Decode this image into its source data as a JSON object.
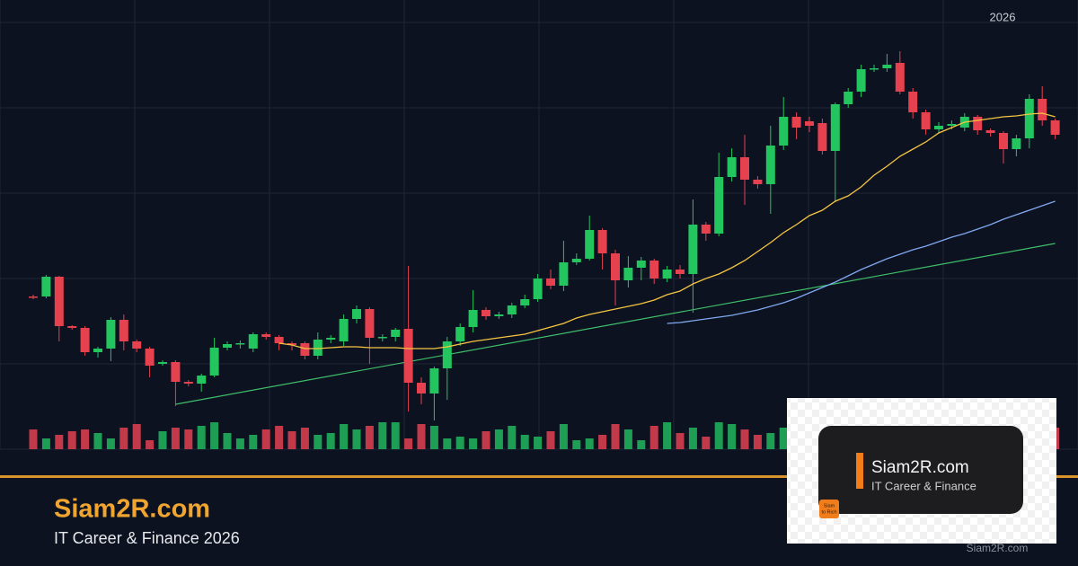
{
  "chart_data": {
    "type": "candlestick",
    "period_label": "2026",
    "ylim": [
      0,
      500
    ],
    "volume_ylim": [
      0,
      100
    ],
    "grid": true,
    "up_color": "#22c55e",
    "down_color": "#e5414f",
    "volume_up_color": "#1e9e55",
    "volume_down_color": "#c23a4a",
    "open": [
      170,
      170,
      192,
      137,
      135,
      108,
      112,
      144,
      120,
      112,
      95,
      97,
      75,
      73,
      82,
      113,
      117,
      112,
      128,
      125,
      118,
      118,
      104,
      122,
      120,
      145,
      156,
      124,
      125,
      134,
      74,
      62,
      90,
      120,
      136,
      155,
      148,
      150,
      160,
      167,
      190,
      182,
      208,
      212,
      244,
      218,
      188,
      202,
      210,
      190,
      200,
      195,
      250,
      240,
      303,
      325,
      300,
      295,
      338,
      370,
      365,
      363,
      332,
      384,
      398,
      423,
      424,
      430,
      398,
      375,
      356,
      360,
      358,
      370,
      355,
      352,
      334,
      346,
      390,
      366
    ],
    "close": [
      169,
      192,
      137,
      135,
      108,
      112,
      144,
      120,
      112,
      93,
      97,
      75,
      73,
      82,
      113,
      117,
      118,
      128,
      125,
      118,
      116,
      104,
      122,
      124,
      145,
      156,
      124,
      125,
      133,
      74,
      62,
      90,
      120,
      136,
      155,
      148,
      150,
      160,
      167,
      190,
      182,
      208,
      212,
      244,
      218,
      188,
      202,
      210,
      190,
      200,
      195,
      250,
      240,
      303,
      325,
      300,
      295,
      338,
      370,
      358,
      360,
      332,
      384,
      398,
      423,
      424,
      428,
      398,
      375,
      356,
      360,
      362,
      370,
      355,
      352,
      334,
      346,
      390,
      366,
      350
    ],
    "high": [
      172,
      194,
      193,
      138,
      137,
      114,
      147,
      150,
      122,
      114,
      99,
      99,
      77,
      84,
      124,
      120,
      121,
      130,
      130,
      127,
      120,
      120,
      130,
      127,
      150,
      160,
      158,
      128,
      135,
      204,
      80,
      92,
      125,
      140,
      177,
      158,
      153,
      163,
      172,
      195,
      200,
      232,
      218,
      260,
      246,
      222,
      215,
      214,
      212,
      204,
      205,
      278,
      253,
      330,
      335,
      350,
      304,
      360,
      392,
      375,
      370,
      368,
      386,
      402,
      428,
      428,
      440,
      443,
      402,
      378,
      364,
      366,
      374,
      372,
      357,
      354,
      350,
      395,
      404,
      368
    ],
    "low": [
      167,
      168,
      120,
      133,
      104,
      102,
      98,
      110,
      108,
      80,
      93,
      48,
      70,
      64,
      80,
      110,
      112,
      108,
      122,
      110,
      110,
      100,
      100,
      118,
      115,
      140,
      95,
      120,
      120,
      42,
      50,
      32,
      55,
      115,
      130,
      144,
      145,
      146,
      157,
      164,
      178,
      176,
      205,
      210,
      200,
      160,
      180,
      188,
      184,
      186,
      190,
      152,
      232,
      237,
      298,
      272,
      290,
      262,
      333,
      345,
      353,
      328,
      275,
      380,
      392,
      420,
      420,
      395,
      368,
      350,
      352,
      356,
      354,
      350,
      348,
      318,
      326,
      335,
      360,
      345
    ],
    "volume": [
      22,
      12,
      16,
      20,
      22,
      18,
      12,
      24,
      28,
      10,
      20,
      24,
      22,
      26,
      30,
      18,
      12,
      16,
      22,
      26,
      20,
      24,
      16,
      18,
      28,
      22,
      26,
      30,
      30,
      12,
      28,
      26,
      12,
      14,
      12,
      20,
      22,
      26,
      16,
      14,
      20,
      28,
      10,
      12,
      16,
      28,
      22,
      10,
      26,
      30,
      18,
      24,
      14,
      30,
      28,
      22,
      16,
      18,
      24,
      14,
      20,
      26,
      18,
      22,
      28,
      16,
      20,
      24,
      30,
      14,
      18,
      22,
      26,
      16,
      20,
      24,
      18,
      22,
      28,
      24
    ],
    "ma_short": {
      "color": "#f5c542",
      "values": [
        null,
        null,
        null,
        null,
        null,
        null,
        null,
        null,
        null,
        null,
        null,
        null,
        null,
        null,
        null,
        null,
        null,
        null,
        null,
        118,
        116,
        112,
        112,
        113,
        114,
        114,
        113,
        113,
        113,
        112,
        112,
        112,
        114,
        117,
        120,
        122,
        124,
        126,
        128,
        132,
        136,
        140,
        146,
        150,
        153,
        156,
        159,
        162,
        166,
        172,
        176,
        184,
        190,
        195,
        202,
        210,
        220,
        230,
        241,
        250,
        260,
        266,
        276,
        282,
        292,
        305,
        315,
        326,
        334,
        342,
        352,
        358,
        364,
        366,
        368,
        370,
        371,
        373,
        374,
        370
      ]
    },
    "ma_long": {
      "color": "#7fa8f0",
      "values": [
        null,
        null,
        null,
        null,
        null,
        null,
        null,
        null,
        null,
        null,
        null,
        null,
        null,
        null,
        null,
        null,
        null,
        null,
        null,
        null,
        null,
        null,
        null,
        null,
        null,
        null,
        null,
        null,
        null,
        null,
        null,
        null,
        null,
        null,
        null,
        null,
        null,
        null,
        null,
        null,
        null,
        null,
        null,
        null,
        null,
        null,
        null,
        null,
        null,
        140,
        141,
        143,
        145,
        147,
        149,
        152,
        155,
        159,
        163,
        168,
        174,
        180,
        186,
        193,
        200,
        206,
        212,
        217,
        222,
        226,
        231,
        236,
        240,
        245,
        250,
        256,
        261,
        266,
        271,
        276
      ]
    },
    "trendline": {
      "color": "#3fbf6a",
      "start_index": 11,
      "start": 50,
      "end_index": 79,
      "end": 229
    }
  },
  "branding": {
    "title": "Siam2R.com",
    "subtitle": "IT Career & Finance 2026",
    "watermark": "Siam2R.com",
    "logo_title": "Siam2R.com",
    "logo_subtitle": "IT Career & Finance",
    "badge_line1": "Siam",
    "badge_line2": "to Rich"
  }
}
